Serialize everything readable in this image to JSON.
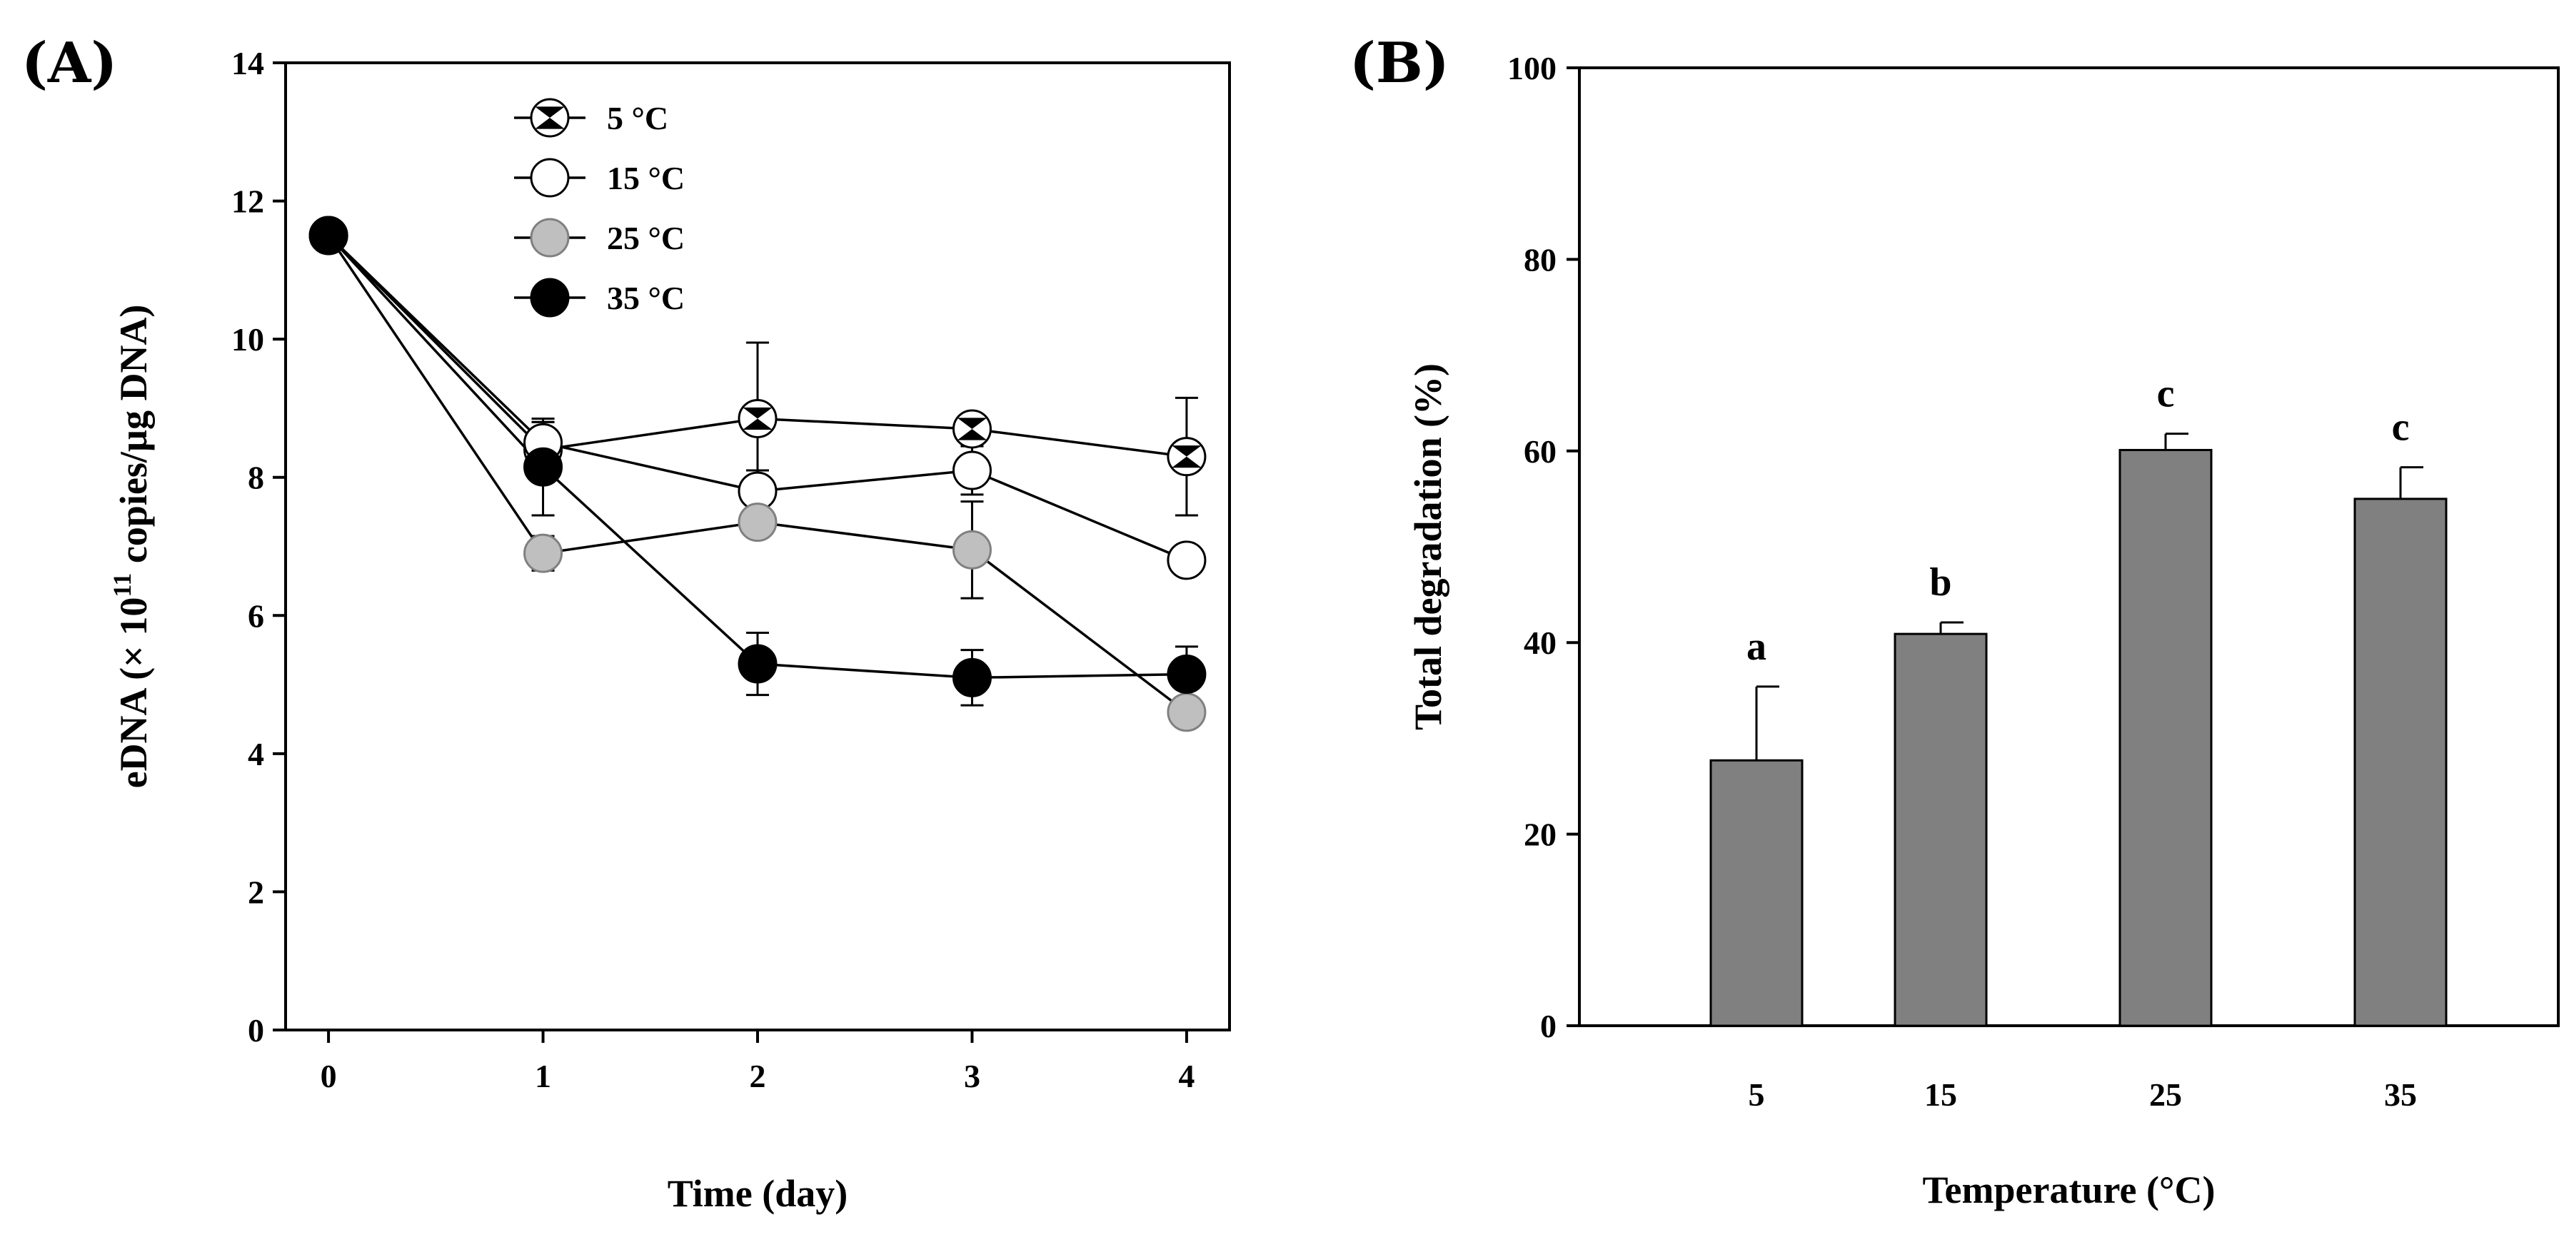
{
  "chart_data": [
    {
      "panel": "(A)",
      "type": "line",
      "title": "",
      "xlabel": "Time (day)",
      "ylabel_main": "eDNA (× 10",
      "ylabel_sup": "11",
      "ylabel_rest": " copies/µg DNA)",
      "x": [
        0,
        1,
        2,
        3,
        4
      ],
      "xlim": [
        -0.2,
        4.2
      ],
      "ylim": [
        0,
        14
      ],
      "xticks": [
        "0",
        "1",
        "2",
        "3",
        "4"
      ],
      "yticks": [
        "0",
        "2",
        "4",
        "6",
        "8",
        "10",
        "12",
        "14"
      ],
      "legend_position": "top-left",
      "series": [
        {
          "name": "5  °C",
          "marker": "hourglass",
          "values": [
            11.5,
            8.4,
            8.85,
            8.7,
            8.3
          ],
          "errors": [
            0,
            0.4,
            1.1,
            0.2,
            0.85
          ]
        },
        {
          "name": "15  °C",
          "marker": "white",
          "values": [
            11.5,
            8.5,
            7.8,
            8.1,
            6.8
          ],
          "errors": [
            0,
            0.3,
            0.3,
            0.35,
            0
          ]
        },
        {
          "name": "25  °C",
          "marker": "gray",
          "values": [
            11.5,
            6.9,
            7.35,
            6.95,
            4.6
          ],
          "errors": [
            0,
            0.25,
            0.1,
            0.7,
            0
          ]
        },
        {
          "name": "35  °C",
          "marker": "black",
          "values": [
            11.5,
            8.15,
            5.3,
            5.1,
            5.15
          ],
          "errors": [
            0,
            0.7,
            0.45,
            0.4,
            0.4
          ]
        }
      ]
    },
    {
      "panel": "(B)",
      "type": "bar",
      "title": "",
      "xlabel": "Temperature (°C)",
      "ylabel": "Total degradation (%)",
      "categories": [
        "5",
        "15",
        "25",
        "35"
      ],
      "values": [
        27.7,
        40.9,
        60.1,
        55.0
      ],
      "errors": [
        7.7,
        1.2,
        1.7,
        3.3
      ],
      "significance": [
        "a",
        "b",
        "c",
        "c"
      ],
      "ylim": [
        0,
        100
      ],
      "yticks": [
        "0",
        "20",
        "40",
        "60",
        "80",
        "100"
      ],
      "colors": {
        "bar": "#808080"
      }
    }
  ],
  "colors": {
    "axis": "#000000",
    "gray_marker": "#bfbfbf",
    "black_marker": "#000000",
    "white_marker": "#ffffff"
  }
}
